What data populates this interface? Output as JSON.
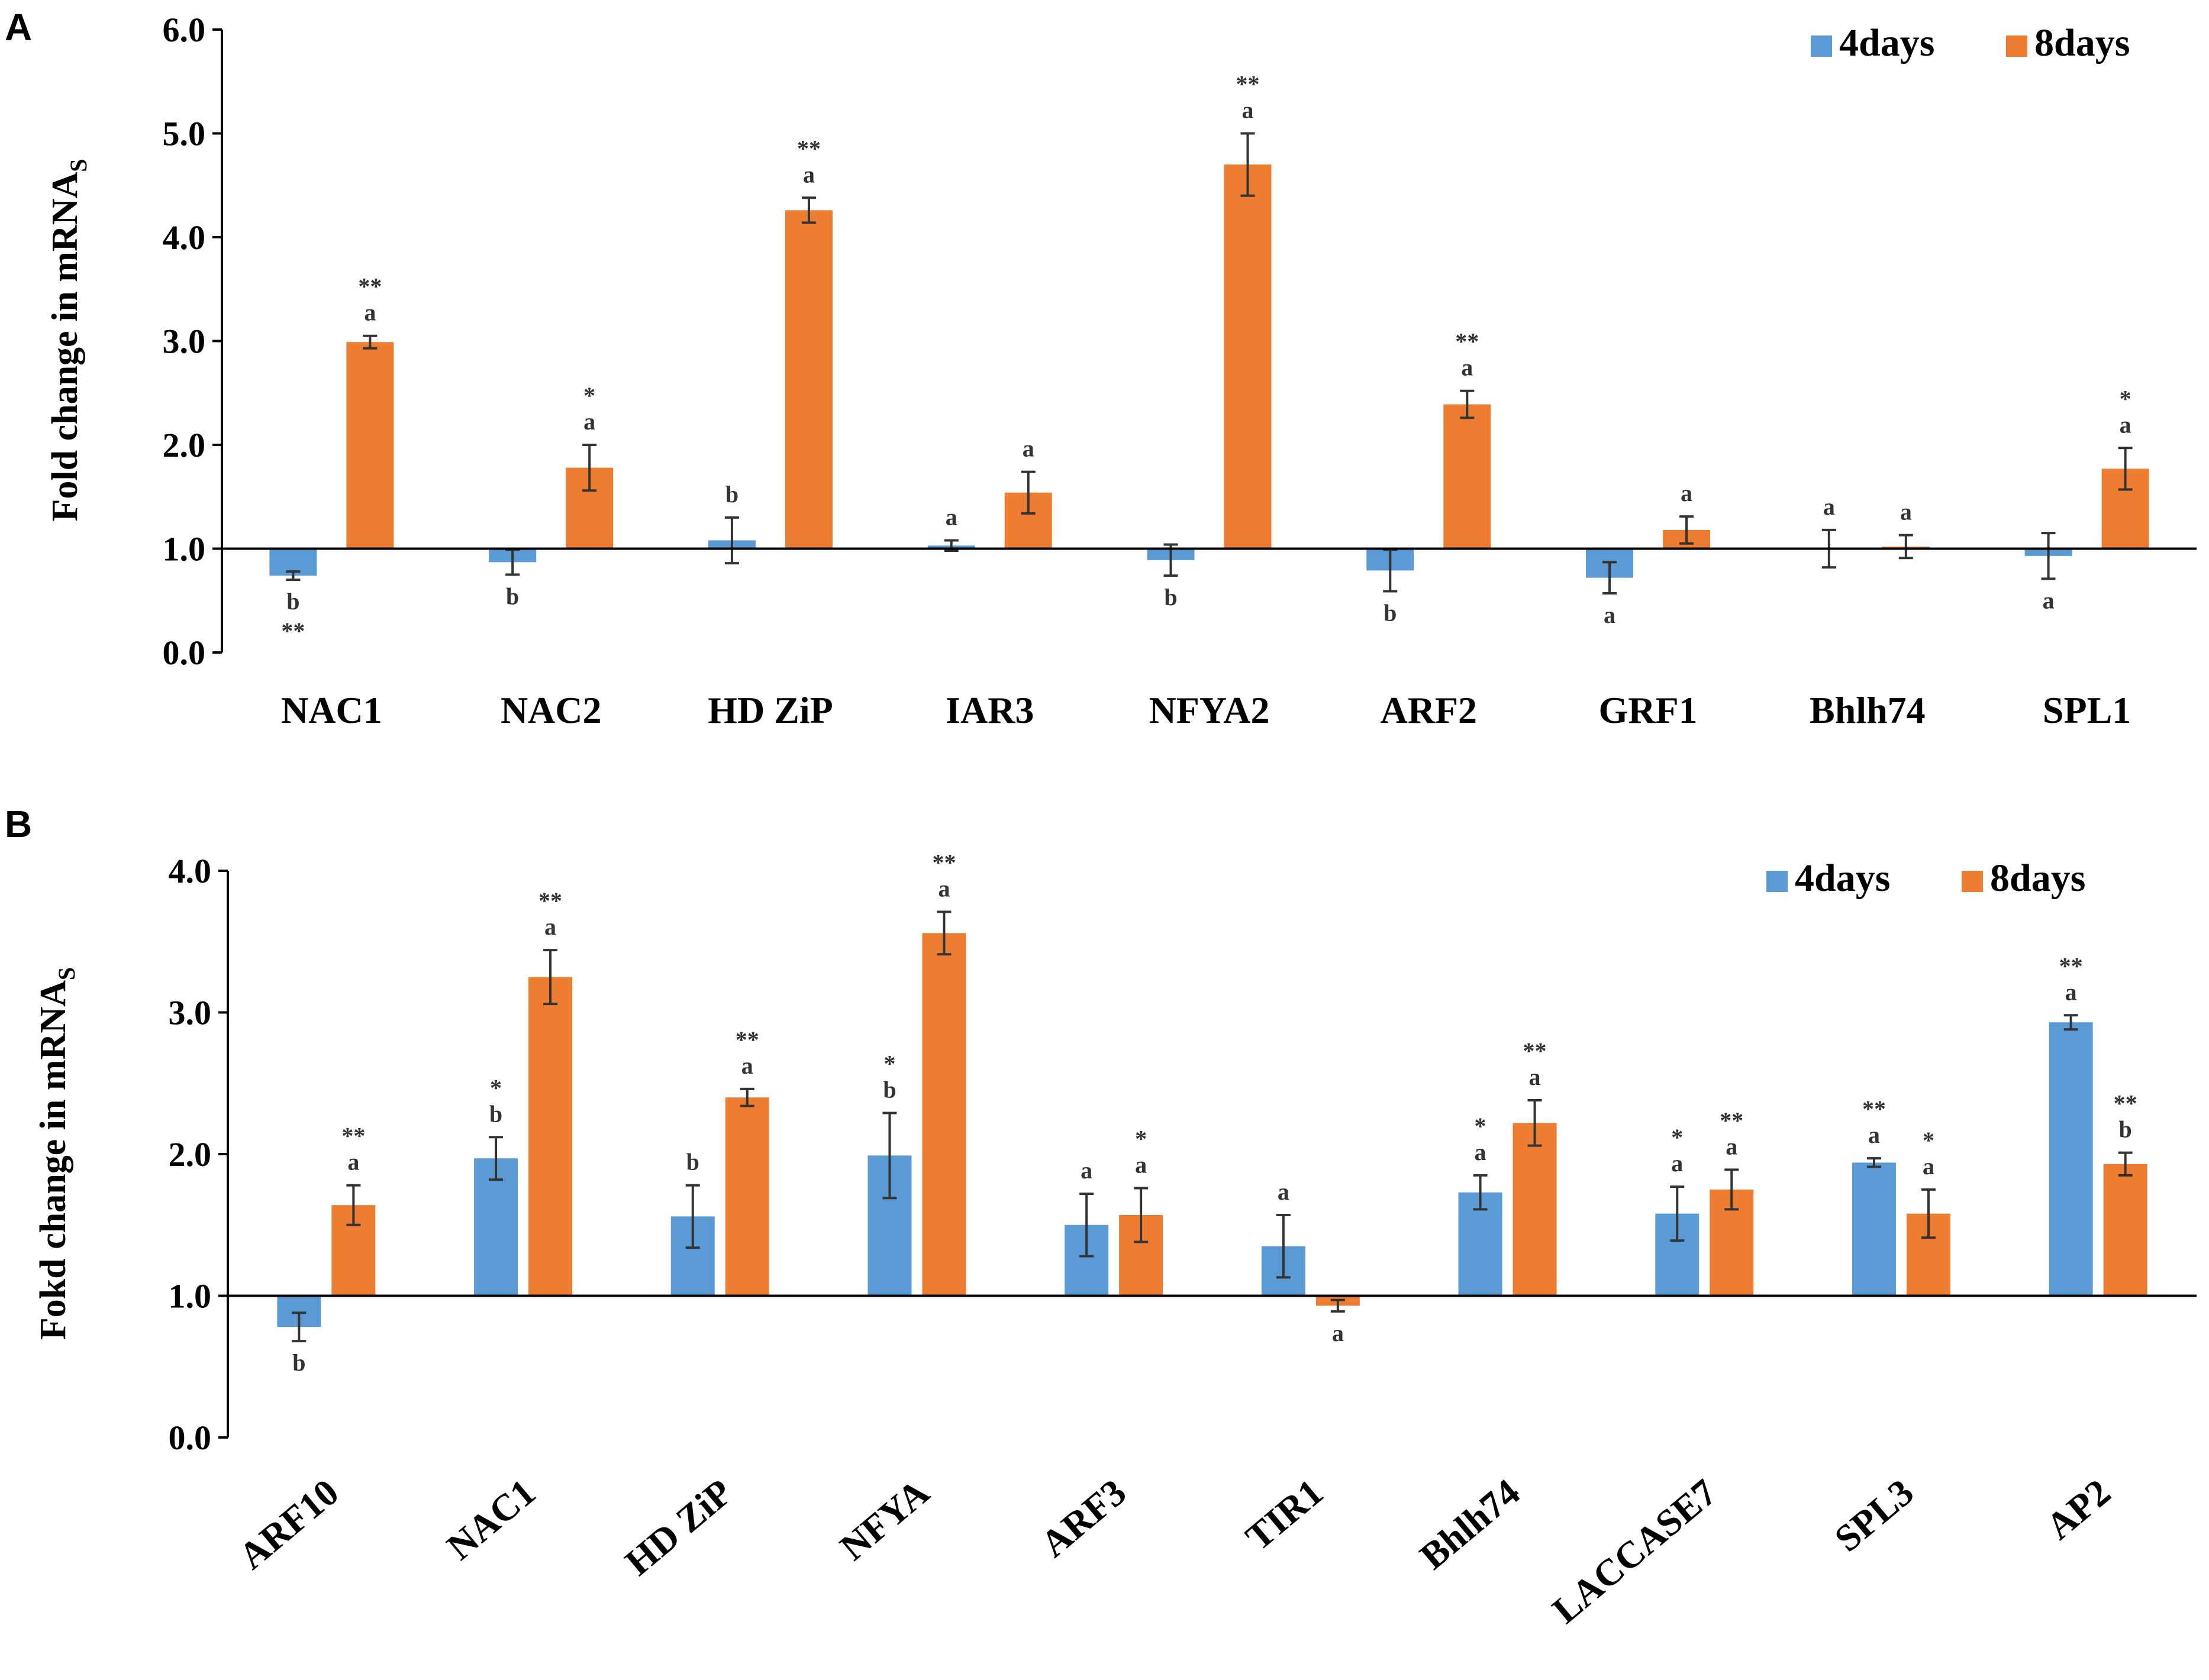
{
  "colors": {
    "s4": "#5b9bd5",
    "s8": "#ed7d31"
  },
  "chart_data": [
    {
      "panel": "A",
      "type": "bar",
      "ylabel": "Fold change in mRNA",
      "ylabel_sub": "S",
      "ylim": [
        0,
        6
      ],
      "yticks": [
        "0.0",
        "1.0",
        "2.0",
        "3.0",
        "4.0",
        "5.0",
        "6.0"
      ],
      "baseline": 1.0,
      "legend": [
        "4days",
        "8days"
      ],
      "legend_position": "top-right",
      "categories": [
        "NAC1",
        "NAC2",
        "HD ZiP",
        "IAR3",
        "NFYA2",
        "ARF2",
        "GRF1",
        "Bhlh74",
        "SPL1"
      ],
      "series": [
        {
          "name": "4days",
          "values": [
            0.74,
            0.87,
            1.08,
            1.03,
            0.89,
            0.79,
            0.72,
            1.0,
            0.93
          ],
          "errors": [
            0.04,
            0.12,
            0.22,
            0.05,
            0.15,
            0.2,
            0.15,
            0.18,
            0.22
          ],
          "letters": [
            "b",
            "b",
            "b",
            "a",
            "b",
            "b",
            "a",
            "a",
            "a"
          ],
          "stars": [
            "**",
            "",
            "",
            "",
            "",
            "",
            "",
            "",
            ""
          ]
        },
        {
          "name": "8days",
          "values": [
            2.99,
            1.78,
            4.26,
            1.54,
            4.7,
            2.39,
            1.18,
            1.02,
            1.77
          ],
          "errors": [
            0.06,
            0.22,
            0.12,
            0.2,
            0.3,
            0.13,
            0.13,
            0.11,
            0.2
          ],
          "letters": [
            "a",
            "a",
            "a",
            "a",
            "a",
            "a",
            "a",
            "a",
            "a"
          ],
          "stars": [
            "**",
            "*",
            "**",
            "",
            "**",
            "**",
            "",
            "",
            "*"
          ]
        }
      ]
    },
    {
      "panel": "B",
      "type": "bar",
      "ylabel": "Fokd change in mRNA",
      "ylabel_sub": "S",
      "ylim": [
        0,
        4
      ],
      "yticks": [
        "0.0",
        "1.0",
        "2.0",
        "3.0",
        "4.0"
      ],
      "baseline": 1.0,
      "legend": [
        "4days",
        "8days"
      ],
      "legend_position": "top-right",
      "categories": [
        "ARF10",
        "NAC1",
        "HD ZiP",
        "NFYA",
        "ARF3",
        "TIR1",
        "Bhlh74",
        "LACCASE7",
        "SPL3",
        "AP2"
      ],
      "series": [
        {
          "name": "4days",
          "values": [
            0.78,
            1.97,
            1.56,
            1.99,
            1.5,
            1.35,
            1.73,
            1.58,
            1.94,
            2.93
          ],
          "errors": [
            0.1,
            0.15,
            0.22,
            0.3,
            0.22,
            0.22,
            0.12,
            0.19,
            0.03,
            0.05
          ],
          "letters": [
            "b",
            "b",
            "b",
            "b",
            "a",
            "a",
            "a",
            "a",
            "a",
            "a"
          ],
          "stars": [
            "",
            "*",
            "",
            "*",
            "",
            "",
            "*",
            "*",
            "**",
            "**"
          ]
        },
        {
          "name": "8days",
          "values": [
            1.64,
            3.25,
            2.4,
            3.56,
            1.57,
            0.93,
            2.22,
            1.75,
            1.58,
            1.93
          ],
          "errors": [
            0.14,
            0.19,
            0.06,
            0.15,
            0.19,
            0.04,
            0.16,
            0.14,
            0.17,
            0.08
          ],
          "letters": [
            "a",
            "a",
            "a",
            "a",
            "a",
            "a",
            "a",
            "a",
            "a",
            "b"
          ],
          "stars": [
            "**",
            "**",
            "**",
            "**",
            "*",
            "",
            "**",
            "**",
            "*",
            "**"
          ]
        }
      ]
    }
  ]
}
